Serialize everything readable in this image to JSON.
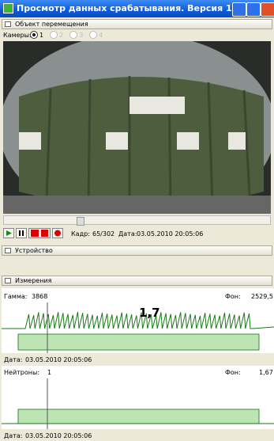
{
  "window": {
    "title": "Просмотр данных срабатывания. Версия 1...."
  },
  "object_panel": {
    "header": "Объект перемещения",
    "cameras_label": "Камеры:",
    "cameras": [
      "1",
      "2",
      "3",
      "4"
    ],
    "frame_label": "Кадр:",
    "frame": "65/302",
    "date_label": "Дата:",
    "date": "03.05.2010 20:05:06"
  },
  "device_panel": {
    "header": "Устройство"
  },
  "measure_panel": {
    "header": "Измерения",
    "gamma": {
      "label": "Гамма:",
      "value": "3868",
      "bg_label": "Фон:",
      "bg": "2529,5",
      "annotation": "1,7",
      "date_label": "Дата:",
      "date": "03.05.2010 20:05:06"
    },
    "neutron": {
      "label": "Нейтроны:",
      "value": "1",
      "bg_label": "Фон:",
      "bg": "1,67",
      "date_label": "Дата:",
      "date": "03.05.2010 20:05:06"
    }
  }
}
